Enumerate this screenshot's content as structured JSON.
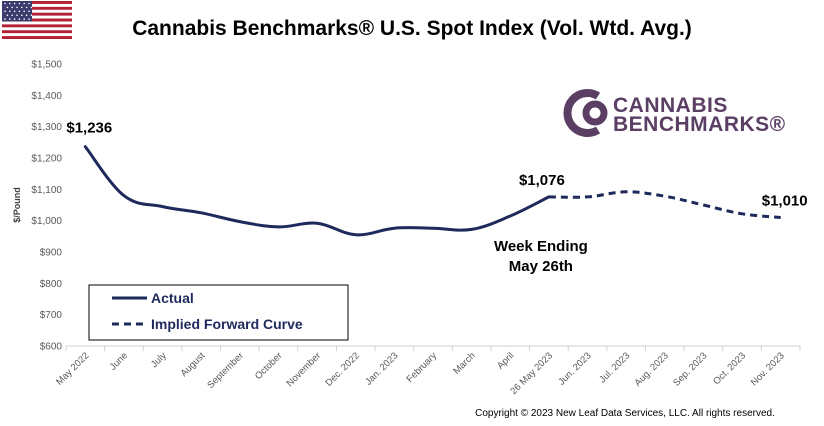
{
  "title": "Cannabis Benchmarks® U.S. Spot Index (Vol. Wtd. Avg.)",
  "flag_icon": "us-flag-icon",
  "logo": {
    "line1": "CANNABIS",
    "line2": "BENCHMARKS®",
    "color": "#5a3e63"
  },
  "copyright": "Copyright © 2023 New Leaf Data Services, LLC. All rights reserved.",
  "chart_data": {
    "type": "line",
    "ylabel": "$/Pound",
    "xlabel": "",
    "ylim": [
      600,
      1500
    ],
    "y_ticks": [
      "$600",
      "$700",
      "$800",
      "$900",
      "$1,000",
      "$1,100",
      "$1,200",
      "$1,300",
      "$1,400",
      "$1,500"
    ],
    "y_tick_values": [
      600,
      700,
      800,
      900,
      1000,
      1100,
      1200,
      1300,
      1400,
      1500
    ],
    "categories": [
      "May 2022",
      "June",
      "July",
      "August",
      "September",
      "October",
      "November",
      "Dec. 2022",
      "Jan. 2023",
      "February",
      "March",
      "April",
      "26 May 2023",
      "Jun. 2023",
      "Jul. 2023",
      "Aug. 2023",
      "Sep. 2023",
      "Oct. 2023",
      "Nov. 2023"
    ],
    "grid": false,
    "line_color": "#1f2a5c",
    "series": [
      {
        "name": "Actual",
        "style": "solid",
        "points": [
          {
            "x": "May 2022",
            "y": 1236
          },
          {
            "x": "June",
            "y": 1080
          },
          {
            "x": "July",
            "y": 1045
          },
          {
            "x": "August",
            "y": 1025
          },
          {
            "x": "September",
            "y": 997
          },
          {
            "x": "October",
            "y": 980
          },
          {
            "x": "November",
            "y": 992
          },
          {
            "x": "Dec. 2022",
            "y": 955
          },
          {
            "x": "Jan. 2023",
            "y": 976
          },
          {
            "x": "February",
            "y": 976
          },
          {
            "x": "March",
            "y": 972
          },
          {
            "x": "April",
            "y": 1015
          },
          {
            "x": "26 May 2023",
            "y": 1076
          }
        ]
      },
      {
        "name": "Implied Forward Curve",
        "style": "dashed",
        "points": [
          {
            "x": "26 May 2023",
            "y": 1076
          },
          {
            "x": "Jun. 2023",
            "y": 1076
          },
          {
            "x": "Jul. 2023",
            "y": 1092
          },
          {
            "x": "Aug. 2023",
            "y": 1078
          },
          {
            "x": "Sep. 2023",
            "y": 1050
          },
          {
            "x": "Oct. 2023",
            "y": 1022
          },
          {
            "x": "Nov. 2023",
            "y": 1010
          }
        ]
      }
    ],
    "annotations": [
      {
        "text": "$1,236",
        "x": "May 2022",
        "y": 1236
      },
      {
        "text": "$1,076",
        "x": "26 May 2023",
        "y": 1076
      },
      {
        "text": "$1,010",
        "x": "Nov. 2023",
        "y": 1010
      },
      {
        "text": "Week Ending",
        "x": "26 May 2023",
        "y": 1076
      },
      {
        "text": "May 26th",
        "x": "26 May 2023",
        "y": 1076
      }
    ],
    "legend_position": "bottom-left"
  }
}
